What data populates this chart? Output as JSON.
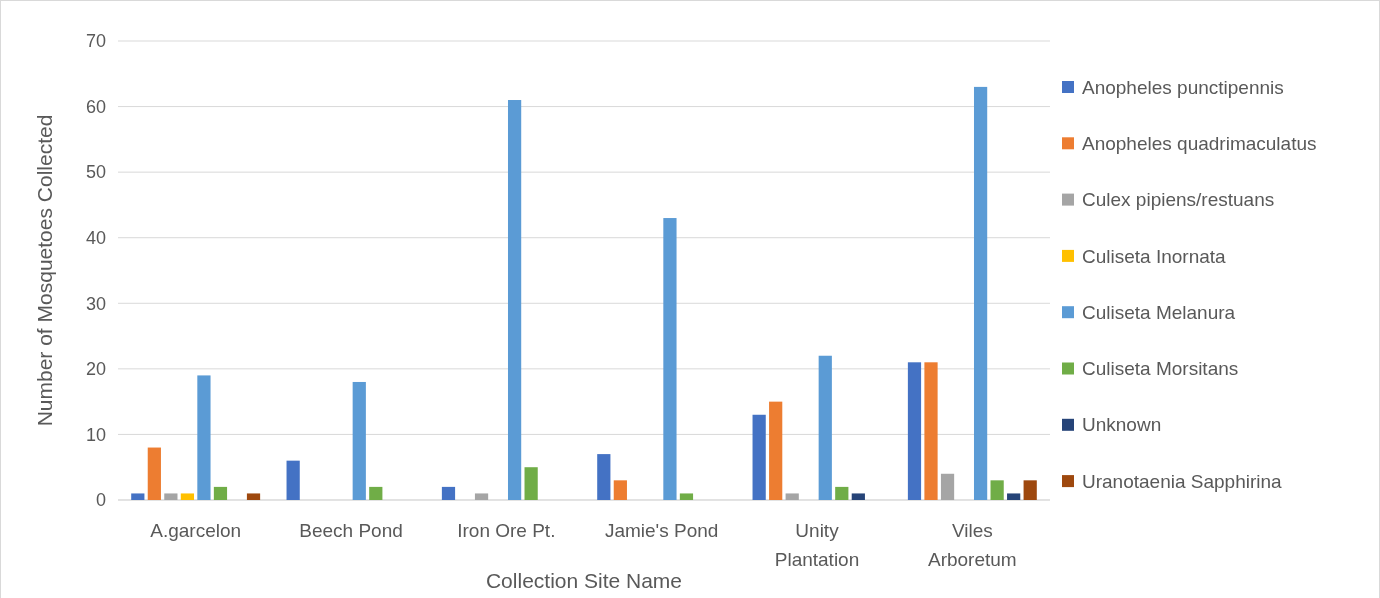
{
  "chart_data": {
    "type": "bar",
    "xlabel": "Collection Site Name",
    "ylabel": "Number of Mosquetoes Collected",
    "categories": [
      "A.garcelon",
      "Beech Pond",
      "Iron Ore Pt.",
      "Jamie's Pond",
      "Unity Plantation",
      "Viles Arboretum"
    ],
    "series": [
      {
        "name": "Anopheles punctipennis",
        "color": "#4472c4",
        "values": [
          1,
          6,
          2,
          7,
          13,
          21
        ]
      },
      {
        "name": "Anopheles quadrimaculatus",
        "color": "#ed7d31",
        "values": [
          8,
          0,
          0,
          3,
          15,
          21
        ]
      },
      {
        "name": "Culex pipiens/restuans",
        "color": "#a5a5a5",
        "values": [
          1,
          0,
          1,
          0,
          1,
          4
        ]
      },
      {
        "name": "Culiseta Inornata",
        "color": "#ffc000",
        "values": [
          1,
          0,
          0,
          0,
          0,
          0
        ]
      },
      {
        "name": "Culiseta Melanura",
        "color": "#5b9bd5",
        "values": [
          19,
          18,
          61,
          43,
          22,
          63
        ]
      },
      {
        "name": "Culiseta Morsitans",
        "color": "#70ad47",
        "values": [
          2,
          2,
          5,
          1,
          2,
          3
        ]
      },
      {
        "name": "Unknown",
        "color": "#264478",
        "values": [
          0,
          0,
          0,
          0,
          1,
          1
        ]
      },
      {
        "name": "Uranotaenia Sapphirina",
        "color": "#9e480e",
        "values": [
          1,
          0,
          0,
          0,
          0,
          3
        ]
      }
    ],
    "ylim": [
      0,
      70
    ],
    "yticks": [
      0,
      10,
      20,
      30,
      40,
      50,
      60,
      70
    ],
    "grid": "y",
    "legend": "right"
  }
}
